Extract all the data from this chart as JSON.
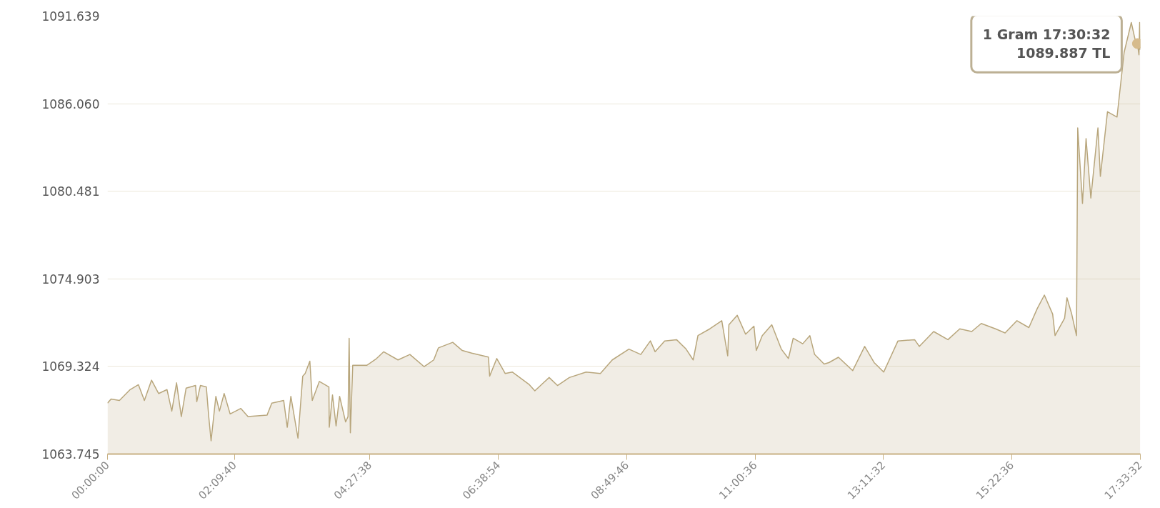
{
  "chart_data": {
    "type": "area",
    "x": [
      0,
      0.061,
      0.203,
      0.385,
      0.526,
      0.627,
      0.749,
      0.87,
      1.012,
      1.093,
      1.174,
      1.255,
      1.336,
      1.497,
      1.518,
      1.579,
      1.68,
      1.721,
      1.761,
      1.842,
      1.903,
      1.983,
      2.085,
      2.267,
      2.388,
      2.712,
      2.793,
      2.995,
      3.056,
      3.117,
      3.238,
      3.319,
      3.36,
      3.44,
      3.481,
      3.602,
      3.764,
      3.77,
      3.825,
      3.886,
      3.946,
      4.048,
      4.089,
      4.108,
      4.129,
      4.169,
      4.411,
      4.574,
      4.696,
      4.939,
      5.141,
      5.383,
      5.546,
      5.626,
      5.869,
      6.031,
      6.193,
      6.476,
      6.497,
      6.618,
      6.76,
      6.881,
      7.164,
      7.265,
      7.508,
      7.65,
      7.852,
      8.136,
      8.379,
      8.581,
      8.864,
      9.066,
      9.229,
      9.31,
      9.472,
      9.674,
      9.836,
      9.957,
      10.038,
      10.24,
      10.443,
      10.544,
      10.564,
      10.706,
      10.848,
      10.99,
      11.03,
      11.131,
      11.293,
      11.455,
      11.576,
      11.657,
      11.819,
      11.94,
      12.021,
      12.183,
      12.264,
      12.426,
      12.669,
      12.872,
      13.033,
      13.196,
      13.438,
      13.721,
      13.802,
      14.045,
      14.288,
      14.489,
      14.692,
      14.854,
      15.097,
      15.259,
      15.461,
      15.664,
      15.806,
      15.927,
      16.068,
      16.109,
      16.271,
      16.311,
      16.392,
      16.473,
      16.494,
      16.575,
      16.636,
      16.717,
      16.838,
      16.879,
      17.0,
      17.162,
      17.283,
      17.405,
      17.466,
      17.5089,
      17.535,
      17.547,
      17.555
    ],
    "series": [
      {
        "color": "#b8a67c",
        "values": [
          1066.99,
          1067.25,
          1067.16,
          1067.85,
          1068.16,
          1067.16,
          1068.45,
          1067.6,
          1067.85,
          1066.48,
          1068.28,
          1066.13,
          1067.94,
          1068.11,
          1067.08,
          1068.11,
          1068.02,
          1066.13,
          1064.59,
          1067.42,
          1066.48,
          1067.6,
          1066.3,
          1066.65,
          1066.13,
          1066.22,
          1066.99,
          1067.16,
          1065.45,
          1067.42,
          1064.76,
          1068.71,
          1068.88,
          1069.66,
          1067.16,
          1068.37,
          1068.02,
          1065.45,
          1067.51,
          1065.54,
          1067.42,
          1065.79,
          1066.13,
          1071.12,
          1065.1,
          1069.4,
          1069.4,
          1069.83,
          1070.26,
          1069.74,
          1070.09,
          1069.31,
          1069.74,
          1070.51,
          1070.86,
          1070.34,
          1070.17,
          1069.92,
          1068.71,
          1069.83,
          1068.88,
          1068.97,
          1068.19,
          1067.77,
          1068.62,
          1068.11,
          1068.62,
          1068.97,
          1068.88,
          1069.74,
          1070.43,
          1070.09,
          1070.95,
          1070.26,
          1070.95,
          1071.03,
          1070.43,
          1069.74,
          1071.29,
          1071.72,
          1072.24,
          1070.0,
          1071.98,
          1072.58,
          1071.38,
          1071.89,
          1070.34,
          1071.29,
          1071.98,
          1070.43,
          1069.83,
          1071.12,
          1070.77,
          1071.29,
          1070.09,
          1069.48,
          1069.57,
          1069.91,
          1069.06,
          1070.6,
          1069.57,
          1068.97,
          1070.95,
          1071.03,
          1070.6,
          1071.55,
          1071.03,
          1071.72,
          1071.55,
          1072.06,
          1071.72,
          1071.46,
          1072.24,
          1071.8,
          1073.01,
          1073.87,
          1072.66,
          1071.29,
          1072.4,
          1073.7,
          1072.66,
          1071.29,
          1084.52,
          1079.71,
          1083.84,
          1080.05,
          1084.52,
          1081.43,
          1085.55,
          1085.21,
          1089.33,
          1091.23,
          1090.2,
          1089.89,
          1089.17,
          1091.23,
          1089.5
        ]
      }
    ],
    "xlim": [
      0,
      17.5589
    ],
    "xticks": [
      {
        "value": 0,
        "label": "00:00:00"
      },
      {
        "value": 2.16111,
        "label": "02:09:40"
      },
      {
        "value": 4.46056,
        "label": "04:27:38"
      },
      {
        "value": 6.64833,
        "label": "06:38:54"
      },
      {
        "value": 8.82944,
        "label": "08:49:46"
      },
      {
        "value": 11.01,
        "label": "11:00:36"
      },
      {
        "value": 13.19222,
        "label": "13:11:32"
      },
      {
        "value": 15.37667,
        "label": "15:22:36"
      },
      {
        "value": 17.5589,
        "label": "17:33:32"
      }
    ],
    "ylim": [
      1063.745,
      1091.639
    ],
    "yticks": [
      {
        "value": 1063.745,
        "label": "1063.745"
      },
      {
        "value": 1069.324,
        "label": "1069.324"
      },
      {
        "value": 1074.903,
        "label": "1074.903"
      },
      {
        "value": 1080.481,
        "label": "1080.481"
      },
      {
        "value": 1086.06,
        "label": "1086.060"
      },
      {
        "value": 1091.639,
        "label": "1091.639"
      }
    ],
    "grid": "y",
    "annotations": [
      {
        "text": "1 Gram 17:30:32\n1089.887 TL",
        "x": 17.5089,
        "y": 1089.887
      }
    ]
  }
}
